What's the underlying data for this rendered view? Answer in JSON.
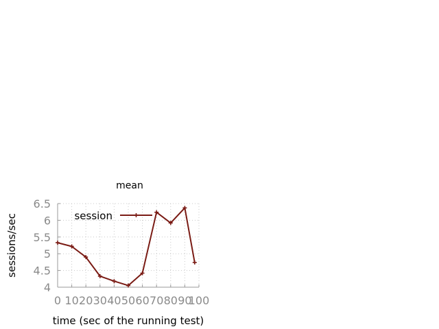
{
  "chart_data": {
    "type": "line",
    "title": "mean",
    "xlabel": "time (sec of the running test)",
    "ylabel": "sessions/sec",
    "xlim": [
      0,
      100
    ],
    "ylim": [
      4,
      6.5
    ],
    "xticks": [
      0,
      10,
      20,
      30,
      40,
      50,
      60,
      70,
      80,
      90,
      100
    ],
    "yticks": [
      4,
      4.5,
      5,
      5.5,
      6,
      6.5
    ],
    "xtick_labels": [
      "0",
      "10",
      "20",
      "30",
      "40",
      "50",
      "60",
      "70",
      "80",
      "90",
      "100"
    ],
    "ytick_labels": [
      "4",
      "4.5",
      "5",
      "5.5",
      "6",
      "6.5"
    ],
    "grid": true,
    "legend_position": "top-left",
    "series": [
      {
        "name": "session",
        "color": "#7a1b14",
        "marker": "plus",
        "x": [
          0,
          10,
          20,
          30,
          40,
          50,
          60,
          70,
          80,
          90,
          97
        ],
        "y": [
          5.33,
          5.22,
          4.9,
          4.33,
          4.18,
          4.05,
          4.42,
          6.24,
          5.92,
          6.37,
          4.74
        ]
      }
    ]
  }
}
